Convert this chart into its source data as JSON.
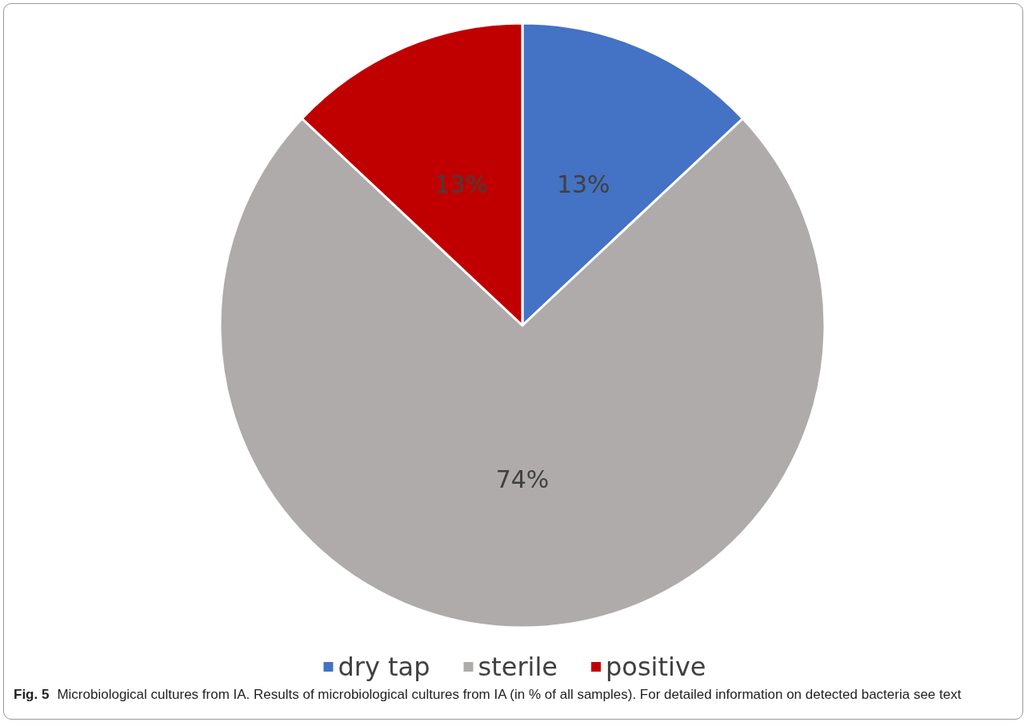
{
  "chart_data": {
    "type": "pie",
    "categories": [
      "dry tap",
      "sterile",
      "positive"
    ],
    "values": [
      13,
      74,
      13
    ],
    "colors": [
      "#4472c4",
      "#afabab",
      "#c00000"
    ],
    "value_labels": [
      "13%",
      "74%",
      "13%"
    ],
    "legend": "bottom",
    "annotations": [
      "Fig. 5",
      "Microbiological cultures from IA. Results of microbiological cultures from IA (in % of all samples). For detailed information on detected bacteria see text"
    ]
  }
}
